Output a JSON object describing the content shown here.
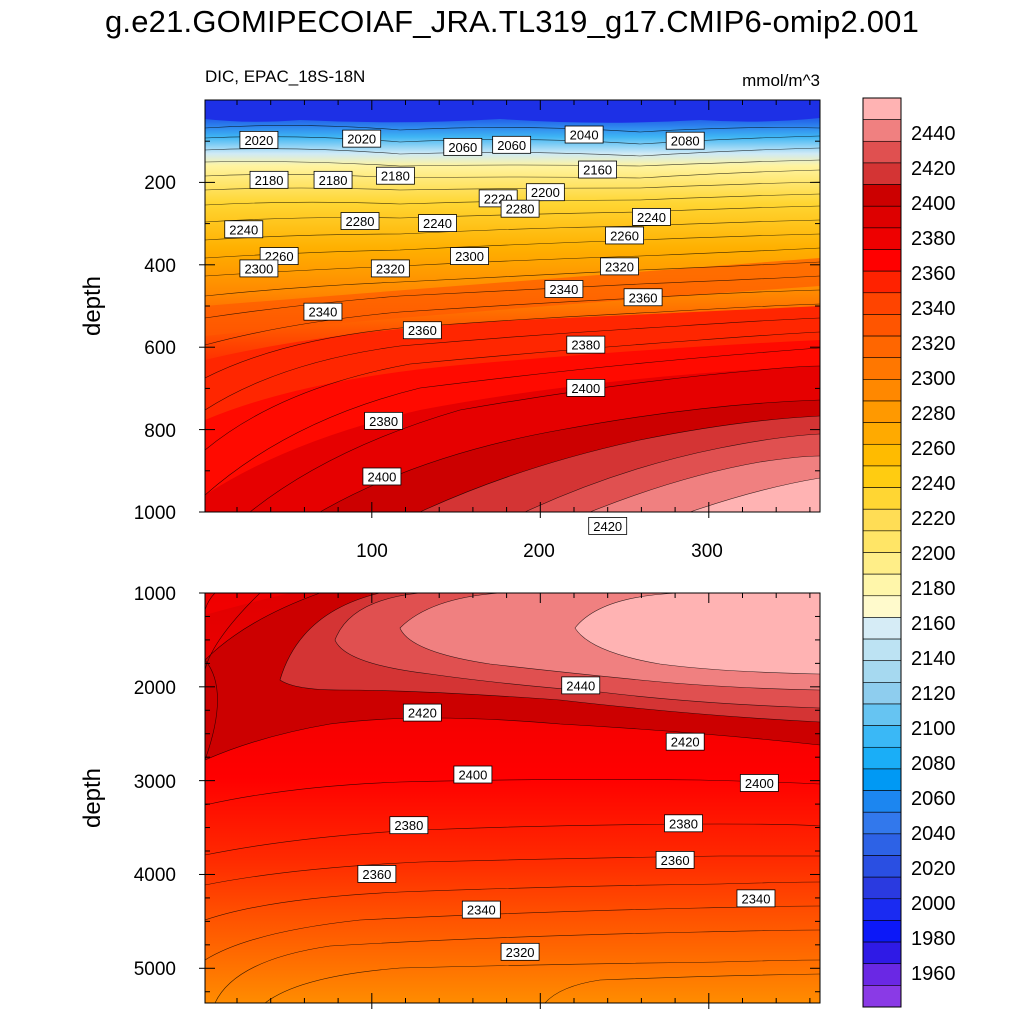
{
  "title": "g.e21.GOMIPECOIAF_JRA.TL319_g17.CMIP6-omip2.001",
  "chart_data": [
    {
      "type": "heatmap",
      "panel": "upper",
      "variable_label": "DIC, EPAC_18S-18N",
      "units_label": "mmol/m^3",
      "ylabel": "depth",
      "xlabel": "",
      "xlim": [
        1,
        366
      ],
      "ylim": [
        1000,
        0
      ],
      "xticks": [
        "100",
        "200",
        "300"
      ],
      "yticks": [
        "200",
        "400",
        "600",
        "800",
        "1000"
      ],
      "contour_labels": [
        {
          "text": "2020",
          "x": 33,
          "y": 98
        },
        {
          "text": "2020",
          "x": 94,
          "y": 95
        },
        {
          "text": "2060",
          "x": 154,
          "y": 115
        },
        {
          "text": "2060",
          "x": 183,
          "y": 110
        },
        {
          "text": "2040",
          "x": 226,
          "y": 85
        },
        {
          "text": "2080",
          "x": 286,
          "y": 100
        },
        {
          "text": "2180",
          "x": 39,
          "y": 195
        },
        {
          "text": "2180",
          "x": 77,
          "y": 195
        },
        {
          "text": "2180",
          "x": 114,
          "y": 185
        },
        {
          "text": "2160",
          "x": 234,
          "y": 170
        },
        {
          "text": "2200",
          "x": 203,
          "y": 225
        },
        {
          "text": "2220",
          "x": 175,
          "y": 240
        },
        {
          "text": "2240",
          "x": 24,
          "y": 315
        },
        {
          "text": "2240",
          "x": 139,
          "y": 300
        },
        {
          "text": "2240",
          "x": 266,
          "y": 285
        },
        {
          "text": "2260",
          "x": 45,
          "y": 380
        },
        {
          "text": "2260",
          "x": 250,
          "y": 330
        },
        {
          "text": "2280",
          "x": 93,
          "y": 295
        },
        {
          "text": "2280",
          "x": 188,
          "y": 265
        },
        {
          "text": "2300",
          "x": 33,
          "y": 410
        },
        {
          "text": "2300",
          "x": 158,
          "y": 380
        },
        {
          "text": "2320",
          "x": 111,
          "y": 410
        },
        {
          "text": "2320",
          "x": 247,
          "y": 405
        },
        {
          "text": "2340",
          "x": 71,
          "y": 515
        },
        {
          "text": "2340",
          "x": 214,
          "y": 460
        },
        {
          "text": "2360",
          "x": 130,
          "y": 560
        },
        {
          "text": "2360",
          "x": 261,
          "y": 480
        },
        {
          "text": "2380",
          "x": 107,
          "y": 780
        },
        {
          "text": "2380",
          "x": 227,
          "y": 595
        },
        {
          "text": "2400",
          "x": 106,
          "y": 915
        },
        {
          "text": "2400",
          "x": 227,
          "y": 700
        },
        {
          "text": "2420",
          "x": 240,
          "y": 1035
        }
      ]
    },
    {
      "type": "heatmap",
      "panel": "lower",
      "ylabel": "depth",
      "xlim": [
        1,
        366
      ],
      "ylim": [
        5370,
        1000
      ],
      "yticks": [
        "1000",
        "2000",
        "3000",
        "4000",
        "5000"
      ],
      "contour_labels": [
        {
          "text": "2440",
          "x": 224,
          "y": 1990
        },
        {
          "text": "2420",
          "x": 130,
          "y": 2280
        },
        {
          "text": "2420",
          "x": 286,
          "y": 2590
        },
        {
          "text": "2400",
          "x": 160,
          "y": 2940
        },
        {
          "text": "2400",
          "x": 330,
          "y": 3030
        },
        {
          "text": "2380",
          "x": 122,
          "y": 3480
        },
        {
          "text": "2380",
          "x": 285,
          "y": 3460
        },
        {
          "text": "2360",
          "x": 280,
          "y": 3850
        },
        {
          "text": "2360",
          "x": 103,
          "y": 4000
        },
        {
          "text": "2340",
          "x": 165,
          "y": 4380
        },
        {
          "text": "2340",
          "x": 328,
          "y": 4260
        },
        {
          "text": "2320",
          "x": 188,
          "y": 4830
        }
      ]
    }
  ],
  "colorbar": {
    "labels": [
      "2440",
      "2420",
      "2400",
      "2380",
      "2360",
      "2340",
      "2320",
      "2300",
      "2280",
      "2260",
      "2240",
      "2220",
      "2200",
      "2180",
      "2160",
      "2140",
      "2120",
      "2100",
      "2080",
      "2060",
      "2040",
      "2020",
      "2000",
      "1980",
      "1960"
    ],
    "boxes_top_to_bottom": [
      "#ffb3b3",
      "#f08080",
      "#e05050",
      "#d43434",
      "#cc0000",
      "#dd0000",
      "#ee0000",
      "#ff0000",
      "#ff2200",
      "#ff4400",
      "#ff5500",
      "#ff6600",
      "#ff7700",
      "#ff8800",
      "#ff9900",
      "#ffaa00",
      "#ffbb00",
      "#ffcc11",
      "#ffd633",
      "#ffdd55",
      "#ffe566",
      "#ffee88",
      "#fff6aa",
      "#fffacc",
      "#d6ecf6",
      "#bde3f3",
      "#a6d9f0",
      "#8ecdee",
      "#66c4f2",
      "#3ab8f6",
      "#1aaef7",
      "#0099f4",
      "#1c86f0",
      "#3278ec",
      "#2d62e6",
      "#2a4fe2",
      "#2a3ae0",
      "#1a2bf2",
      "#0c18f8",
      "#2f1ae6",
      "#6a28e4",
      "#8a3ae6"
    ]
  }
}
